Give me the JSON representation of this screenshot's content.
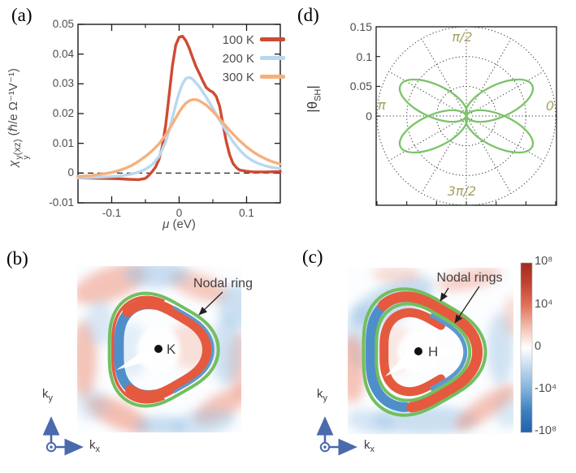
{
  "figure": {
    "panel_letters": {
      "a": "(a)",
      "b": "(b)",
      "c": "(c)",
      "d": "(d)"
    }
  },
  "chart_data": {
    "panel_a": {
      "type": "line",
      "xlabel_mu": "μ",
      "xlabel_units": "(eV)",
      "ylabel": {
        "chi": "χ",
        "sup": "y",
        "sub": "y",
        "paren": "(xz)",
        "units": "(ℏ/e Ω⁻¹V⁻¹)"
      },
      "xlim": [
        -0.15,
        0.15
      ],
      "ylim": [
        -0.01,
        0.05
      ],
      "xticks": [
        {
          "v": -0.1,
          "label": "-0.1"
        },
        {
          "v": 0,
          "label": "0"
        },
        {
          "v": 0.1,
          "label": "0.1"
        }
      ],
      "xminor": [
        -0.05,
        0.05
      ],
      "yticks": [
        {
          "v": 0.05,
          "label": "0.05"
        },
        {
          "v": 0.04,
          "label": "0.04"
        },
        {
          "v": 0.03,
          "label": "0.03"
        },
        {
          "v": 0.02,
          "label": "0.02"
        },
        {
          "v": 0.01,
          "label": "0.01"
        },
        {
          "v": 0,
          "label": "0"
        },
        {
          "v": -0.01,
          "label": "-0.01"
        }
      ],
      "zero_dashed_line": 0,
      "legend_position": "top-right",
      "grid": false,
      "series": [
        {
          "name": "100 K",
          "color": "#cf4a33",
          "points": [
            [
              -0.15,
              -0.0016
            ],
            [
              -0.13,
              -0.0017
            ],
            [
              -0.11,
              -0.0018
            ],
            [
              -0.09,
              -0.0019
            ],
            [
              -0.075,
              -0.0021
            ],
            [
              -0.06,
              -0.0022
            ],
            [
              -0.05,
              -0.0018
            ],
            [
              -0.045,
              -0.0008
            ],
            [
              -0.04,
              0.0005
            ],
            [
              -0.035,
              0.002
            ],
            [
              -0.03,
              0.0045
            ],
            [
              -0.025,
              0.009
            ],
            [
              -0.02,
              0.016
            ],
            [
              -0.015,
              0.026
            ],
            [
              -0.01,
              0.036
            ],
            [
              -0.005,
              0.043
            ],
            [
              0,
              0.0457
            ],
            [
              0.005,
              0.046
            ],
            [
              0.01,
              0.0445
            ],
            [
              0.015,
              0.042
            ],
            [
              0.02,
              0.0388
            ],
            [
              0.025,
              0.0358
            ],
            [
              0.03,
              0.0335
            ],
            [
              0.035,
              0.031
            ],
            [
              0.04,
              0.0288
            ],
            [
              0.045,
              0.0278
            ],
            [
              0.05,
              0.0272
            ],
            [
              0.055,
              0.0258
            ],
            [
              0.06,
              0.0225
            ],
            [
              0.065,
              0.0165
            ],
            [
              0.07,
              0.0105
            ],
            [
              0.075,
              0.006
            ],
            [
              0.08,
              0.0032
            ],
            [
              0.085,
              0.0018
            ],
            [
              0.09,
              0.001
            ],
            [
              0.1,
              0.0006
            ],
            [
              0.11,
              0.0004
            ],
            [
              0.13,
              0.0004
            ],
            [
              0.15,
              0.0005
            ]
          ]
        },
        {
          "name": "200 K",
          "color": "#b9d8ef",
          "points": [
            [
              -0.15,
              -0.0016
            ],
            [
              -0.13,
              -0.0015
            ],
            [
              -0.11,
              -0.0013
            ],
            [
              -0.09,
              -0.001
            ],
            [
              -0.08,
              -0.0007
            ],
            [
              -0.07,
              -0.0003
            ],
            [
              -0.06,
              0.0003
            ],
            [
              -0.05,
              0.0013
            ],
            [
              -0.04,
              0.0028
            ],
            [
              -0.03,
              0.0055
            ],
            [
              -0.02,
              0.0105
            ],
            [
              -0.015,
              0.0142
            ],
            [
              -0.01,
              0.0185
            ],
            [
              -0.005,
              0.023
            ],
            [
              0,
              0.027
            ],
            [
              0.005,
              0.03
            ],
            [
              0.01,
              0.0318
            ],
            [
              0.015,
              0.0322
            ],
            [
              0.02,
              0.0316
            ],
            [
              0.03,
              0.029
            ],
            [
              0.04,
              0.0256
            ],
            [
              0.05,
              0.0218
            ],
            [
              0.06,
              0.0178
            ],
            [
              0.07,
              0.014
            ],
            [
              0.08,
              0.0105
            ],
            [
              0.09,
              0.0077
            ],
            [
              0.1,
              0.0055
            ],
            [
              0.11,
              0.004
            ],
            [
              0.12,
              0.003
            ],
            [
              0.13,
              0.0023
            ],
            [
              0.14,
              0.0018
            ],
            [
              0.15,
              0.0016
            ]
          ]
        },
        {
          "name": "300 K",
          "color": "#f6b07c",
          "points": [
            [
              -0.15,
              -0.0011
            ],
            [
              -0.13,
              -0.0008
            ],
            [
              -0.11,
              -0.0002
            ],
            [
              -0.1,
              0.0002
            ],
            [
              -0.09,
              0.0008
            ],
            [
              -0.08,
              0.0016
            ],
            [
              -0.07,
              0.0026
            ],
            [
              -0.06,
              0.004
            ],
            [
              -0.05,
              0.0056
            ],
            [
              -0.04,
              0.0075
            ],
            [
              -0.03,
              0.0098
            ],
            [
              -0.02,
              0.0128
            ],
            [
              -0.01,
              0.0165
            ],
            [
              0,
              0.0205
            ],
            [
              0.005,
              0.0222
            ],
            [
              0.01,
              0.0235
            ],
            [
              0.015,
              0.0243
            ],
            [
              0.02,
              0.0247
            ],
            [
              0.025,
              0.0247
            ],
            [
              0.03,
              0.0243
            ],
            [
              0.04,
              0.0229
            ],
            [
              0.05,
              0.0207
            ],
            [
              0.06,
              0.0182
            ],
            [
              0.07,
              0.0156
            ],
            [
              0.08,
              0.0131
            ],
            [
              0.09,
              0.0108
            ],
            [
              0.1,
              0.0088
            ],
            [
              0.11,
              0.0071
            ],
            [
              0.12,
              0.0057
            ],
            [
              0.13,
              0.0046
            ],
            [
              0.14,
              0.0037
            ],
            [
              0.15,
              0.003
            ]
          ]
        }
      ]
    },
    "panel_d": {
      "type": "polar",
      "ylabel": {
        "open": "|",
        "theta": "θ",
        "sub": "SH",
        "close": "|"
      },
      "rticks": [
        {
          "v": 0.15,
          "label": "0.15"
        },
        {
          "v": 0.1,
          "label": "0.1"
        },
        {
          "v": 0.05,
          "label": "0.05"
        },
        {
          "v": 0,
          "label": "0"
        }
      ],
      "angle_labels": [
        {
          "text": "π/2"
        },
        {
          "text": "π"
        },
        {
          "text": "0"
        },
        {
          "text": "3π/2"
        }
      ],
      "grid_circles": [
        0.05,
        0.1,
        0.15
      ],
      "spoke_step_deg": 30,
      "accent_label_color": "#a6a162",
      "curve": {
        "type": "four-lobe rose",
        "color": "#7cc36a",
        "lobe_tip_angles_deg": [
          25,
          155,
          205,
          335
        ],
        "lobe_length": 0.122,
        "lobe_half_width": 0.027
      }
    },
    "panel_b": {
      "type": "heatmap",
      "center_label": "K",
      "annotation": "Nodal ring",
      "nodal_ring_count": 1,
      "axis_x": {
        "base": "k",
        "sub": "x"
      },
      "axis_y": {
        "base": "k",
        "sub": "y"
      },
      "ring": {
        "shape": "rounded-triangle",
        "warp": 0.1,
        "color": "#72bf5e"
      },
      "band_colors": {
        "positive": "#e5593f",
        "negative": "#4e8fca"
      }
    },
    "panel_c": {
      "type": "heatmap",
      "center_label": "H",
      "annotation": "Nodal rings",
      "nodal_ring_count": 2,
      "axis_x": {
        "base": "k",
        "sub": "x"
      },
      "axis_y": {
        "base": "k",
        "sub": "y"
      },
      "ring": {
        "shape": "rounded-triangle",
        "warp": 0.1,
        "color": "#72bf5e"
      },
      "band_colors": {
        "positive": "#e5593f",
        "negative": "#4e8fca"
      },
      "colorbar": {
        "ticks": [
          "10⁸",
          "10⁴",
          "0",
          "-10⁴",
          "-10⁸"
        ],
        "colors_top_to_bottom": [
          "#9f2c20",
          "#c44331",
          "#e07258",
          "#f2bcab",
          "#ffffff",
          "#bcd7ee",
          "#7fb0d9",
          "#3c7fbe",
          "#2061ab"
        ]
      }
    }
  }
}
